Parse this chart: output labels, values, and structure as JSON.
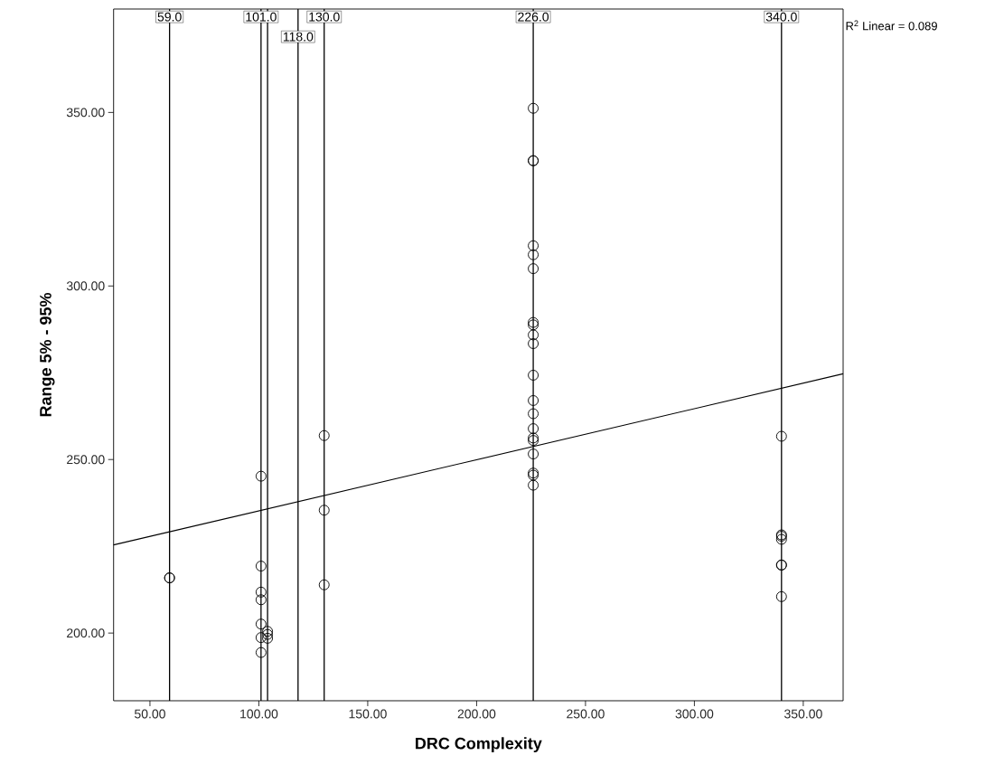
{
  "chart_data": {
    "type": "scatter",
    "xlabel": "DRC Complexity",
    "ylabel": "Range 5% - 95%",
    "xlim": [
      33.3,
      368.3
    ],
    "ylim": [
      180.5,
      379.8
    ],
    "xticks": [
      {
        "value": 50,
        "label": "50.00"
      },
      {
        "value": 100,
        "label": "100.00"
      },
      {
        "value": 150,
        "label": "150.00"
      },
      {
        "value": 200,
        "label": "200.00"
      },
      {
        "value": 250,
        "label": "250.00"
      },
      {
        "value": 300,
        "label": "300.00"
      },
      {
        "value": 350,
        "label": "350.00"
      }
    ],
    "yticks": [
      {
        "value": 200,
        "label": "200.00"
      },
      {
        "value": 250,
        "label": "250.00"
      },
      {
        "value": 300,
        "label": "300.00"
      },
      {
        "value": 350,
        "label": "350.00"
      }
    ],
    "series": [
      {
        "marker": "circle",
        "color": "#000000",
        "x": [
          59,
          59,
          101,
          101,
          101,
          101,
          101,
          101,
          101,
          104,
          104,
          104,
          130,
          130,
          130,
          226,
          226,
          226,
          226,
          226,
          226,
          226,
          226,
          226,
          226,
          226,
          226,
          226,
          226,
          226,
          226,
          226,
          226,
          226,
          226,
          340,
          340,
          340,
          340,
          340,
          340,
          340
        ],
        "values": [
          215.9,
          215.9,
          245.2,
          219.3,
          211.8,
          209.6,
          202.6,
          198.7,
          194.4,
          198.5,
          199.6,
          200.5,
          256.9,
          235.4,
          213.9,
          351.2,
          336.1,
          336.1,
          311.6,
          309.0,
          305.0,
          289.5,
          288.8,
          285.9,
          283.4,
          274.3,
          267.0,
          263.2,
          258.9,
          256.2,
          255.5,
          251.6,
          246.1,
          245.5,
          242.6,
          256.7,
          227.0,
          227.9,
          228.3,
          219.6,
          219.6,
          210.5
        ]
      },
      {
        "type": "line",
        "marker": "none",
        "color": "#000000",
        "x": [
          33.3,
          368.3
        ],
        "values": [
          225.4,
          274.7
        ]
      }
    ],
    "ref_lines": [
      {
        "axis": "x",
        "value": 59,
        "label": "59.0",
        "color": "#000000"
      },
      {
        "axis": "x",
        "value": 101,
        "label": "101.0",
        "color": "#000000"
      },
      {
        "axis": "x",
        "value": 104,
        "label": null,
        "color": "#000000"
      },
      {
        "axis": "x",
        "value": 118,
        "label": "118.0",
        "color": "#000000"
      },
      {
        "axis": "x",
        "value": 130,
        "label": "130.0",
        "color": "#000000"
      },
      {
        "axis": "x",
        "value": 226,
        "label": "226.0",
        "color": "#000000"
      },
      {
        "axis": "x",
        "value": 340,
        "label": "340.0",
        "color": "#000000"
      }
    ],
    "annotations": [
      "R$^{2}$ Linear = 0.089"
    ]
  }
}
